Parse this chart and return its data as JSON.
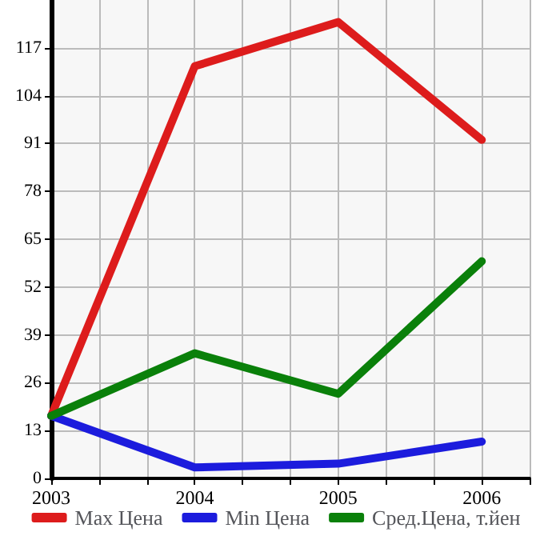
{
  "chart_data": {
    "type": "line",
    "x": [
      2003,
      2004,
      2005,
      2006
    ],
    "series": [
      {
        "name": "Max Цена",
        "color": "#dd1c1c",
        "values": [
          17,
          112,
          124,
          92
        ]
      },
      {
        "name": "Min Цена",
        "color": "#1c1cdd",
        "values": [
          17,
          3,
          4,
          10
        ]
      },
      {
        "name": "Сред.Цена, т.йен",
        "color": "#0a800a",
        "values": [
          17,
          34,
          23,
          59
        ]
      }
    ],
    "xlim": [
      2003,
      2006.333
    ],
    "xticks": [
      2003,
      {
        "value": 2003.333,
        "label": null
      },
      {
        "value": 2003.667,
        "label": null
      },
      2004,
      {
        "value": 2004.333,
        "label": null
      },
      {
        "value": 2004.667,
        "label": null
      },
      2005,
      {
        "value": 2005.333,
        "label": null
      },
      {
        "value": 2005.667,
        "label": null
      },
      2006,
      {
        "value": 2006.333,
        "label": null
      }
    ],
    "ylim": [
      0,
      130
    ],
    "yticks": [
      0,
      13,
      26,
      39,
      52,
      65,
      78,
      91,
      104,
      117
    ],
    "grid": true,
    "legend": "bottom",
    "marker": "none",
    "line_style": "solid"
  }
}
